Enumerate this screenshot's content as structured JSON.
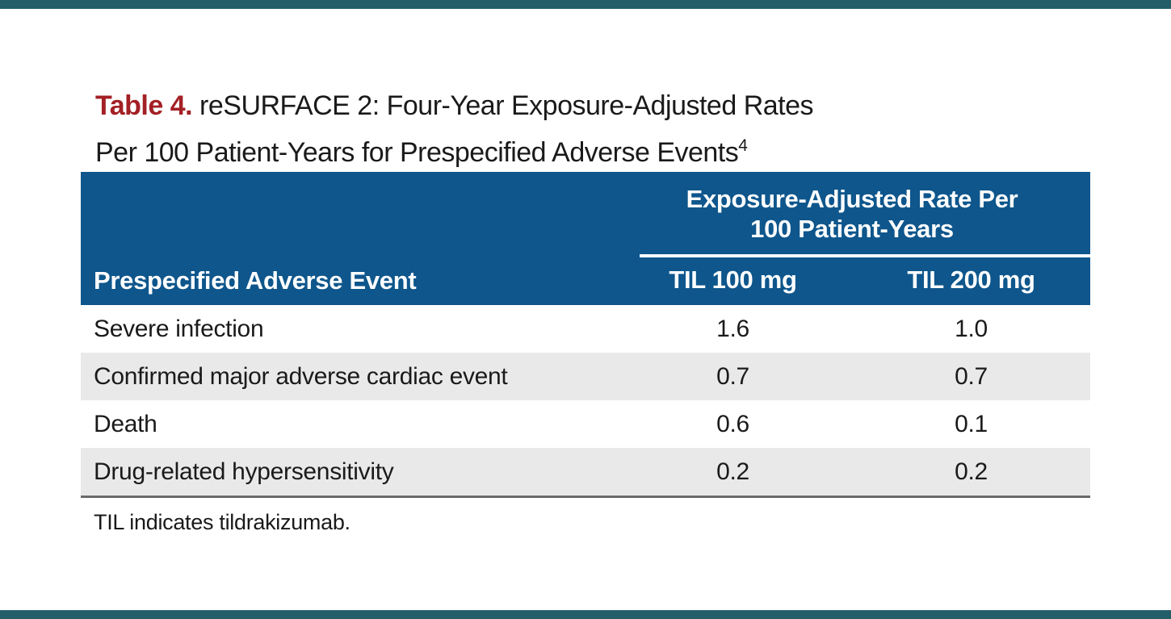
{
  "page": {
    "background_color": "#ffffff",
    "edge_bar_color": "#235e69"
  },
  "title": {
    "label": "Table 4.",
    "label_color": "#a32025",
    "line1": " reSURFACE 2: Four-Year Exposure-Adjusted Rates",
    "line2": "Per 100 Patient-Years for Prespecified Adverse Events",
    "reference_superscript": "4"
  },
  "table": {
    "header": {
      "background_color": "#0e568c",
      "text_color": "#ffffff",
      "row_header": "Prespecified Adverse Event",
      "group_header_line1": "Exposure-Adjusted Rate Per",
      "group_header_line2": "100 Patient-Years",
      "col1": "TIL 100 mg",
      "col2": "TIL 200 mg"
    },
    "stripe_color": "#e9e9e9",
    "bottom_rule_color": "#6a6a6a",
    "rows": [
      {
        "event": "Severe infection",
        "til_100": "1.6",
        "til_200": "1.0"
      },
      {
        "event": "Confirmed major adverse cardiac event",
        "til_100": "0.7",
        "til_200": "0.7"
      },
      {
        "event": "Death",
        "til_100": "0.6",
        "til_200": "0.1"
      },
      {
        "event": "Drug-related hypersensitivity",
        "til_100": "0.2",
        "til_200": "0.2"
      }
    ]
  },
  "footnote": "TIL indicates tildrakizumab."
}
